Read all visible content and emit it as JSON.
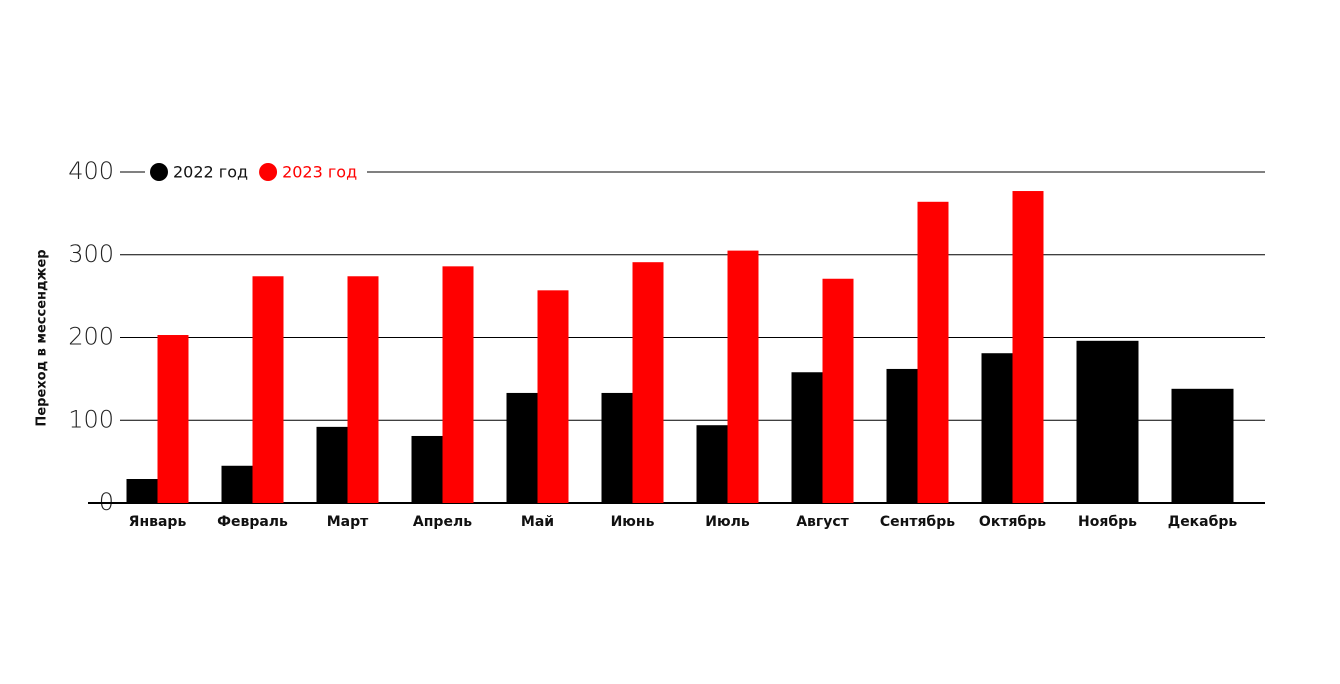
{
  "chart_data": {
    "type": "bar",
    "y_label": "Переход в мессенджер",
    "categories": [
      "Январь",
      "Февраль",
      "Март",
      "Апрель",
      "Май",
      "Июнь",
      "Июль",
      "Август",
      "Сентябрь",
      "Октябрь",
      "Ноябрь",
      "Декабрь"
    ],
    "series": [
      {
        "name": "2022 год",
        "color": "#000000",
        "values": [
          29,
          45,
          92,
          81,
          133,
          133,
          94,
          158,
          162,
          181,
          196,
          138
        ]
      },
      {
        "name": "2023 год",
        "color": "#ff0000",
        "values": [
          203,
          274,
          274,
          286,
          257,
          291,
          305,
          271,
          364,
          377,
          null,
          null
        ]
      }
    ],
    "ylim": [
      0,
      400
    ],
    "yticks": [
      0,
      100,
      200,
      300,
      400
    ],
    "grid": true
  }
}
